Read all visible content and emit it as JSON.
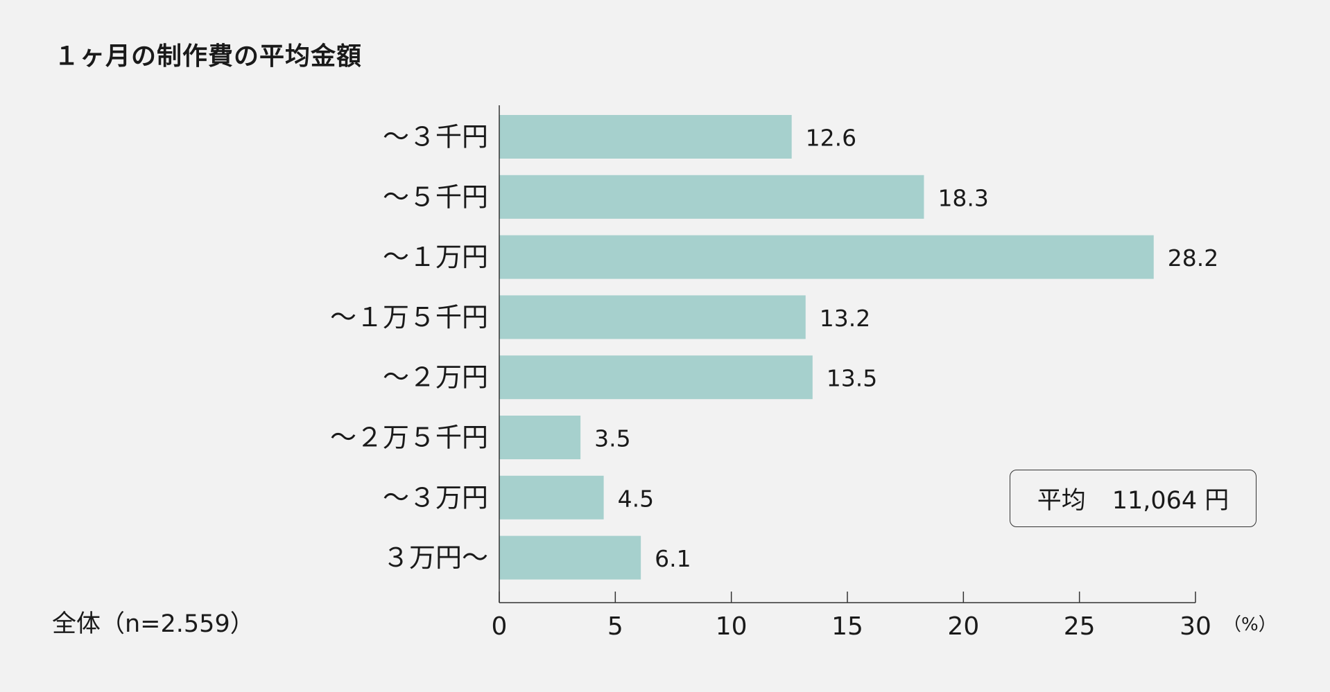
{
  "chart_data": {
    "type": "bar",
    "orientation": "horizontal",
    "title": "１ヶ月の制作費の平均金額",
    "categories": [
      "～３千円",
      "～５千円",
      "～１万円",
      "～１万５千円",
      "～２万円",
      "～２万５千円",
      "～３万円",
      "３万円～"
    ],
    "values": [
      12.6,
      18.3,
      28.2,
      13.2,
      13.5,
      3.5,
      4.5,
      6.1
    ],
    "value_labels": [
      "12.6",
      "18.3",
      "28.2",
      "13.2",
      "13.5",
      "3.5",
      "4.5",
      "6.1"
    ],
    "xlim": [
      0,
      30
    ],
    "xticks": [
      0,
      5,
      10,
      15,
      20,
      25,
      30
    ],
    "unit": "（%）",
    "sample": "全体（n=2.559）",
    "grid": false,
    "bar_color": "#a6d0cd"
  },
  "average": {
    "label": "平均",
    "value": "11,064 円"
  }
}
